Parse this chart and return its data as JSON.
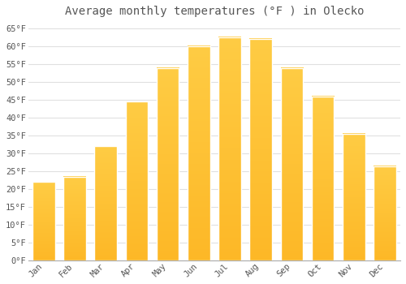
{
  "title": "Average monthly temperatures (°F ) in Olecko",
  "months": [
    "Jan",
    "Feb",
    "Mar",
    "Apr",
    "May",
    "Jun",
    "Jul",
    "Aug",
    "Sep",
    "Oct",
    "Nov",
    "Dec"
  ],
  "values": [
    22,
    23.5,
    32,
    44.5,
    54,
    60,
    62.5,
    62,
    54,
    46,
    35.5,
    26.5
  ],
  "bar_color_bottom": "#FDB827",
  "bar_color_top": "#FFCC44",
  "bar_edge_color": "#FFFFFF",
  "background_color": "#FFFFFF",
  "grid_color": "#E0E0E0",
  "text_color": "#555555",
  "ylim": [
    0,
    67
  ],
  "yticks": [
    0,
    5,
    10,
    15,
    20,
    25,
    30,
    35,
    40,
    45,
    50,
    55,
    60,
    65
  ],
  "title_fontsize": 10,
  "tick_fontsize": 7.5,
  "font_family": "monospace"
}
